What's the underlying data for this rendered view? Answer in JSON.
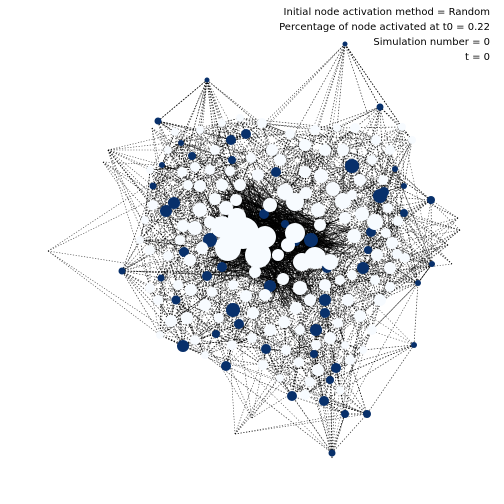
{
  "annotations": {
    "method_line": "Initial node activation method = Random",
    "percentage_line": "Percentage of node activated at t0 = 0.22",
    "simulation_line": "Simulation number = 0",
    "time_line": "t = 0"
  },
  "colors": {
    "active_node": "#08306b",
    "inactive_node": "#f7fbff",
    "edge": "#000000",
    "background": "#ffffff"
  }
}
